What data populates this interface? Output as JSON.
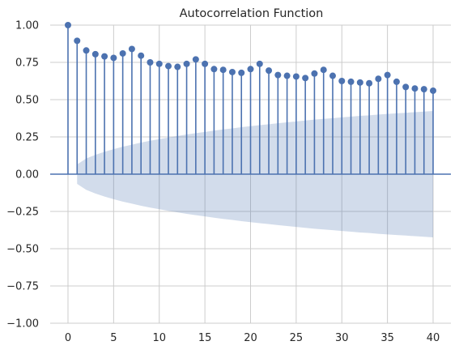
{
  "chart_data": {
    "type": "stem",
    "title": "Autocorrelation Function",
    "xlabel": "",
    "ylabel": "",
    "xlim": [
      -1.95,
      41.95
    ],
    "ylim": [
      -1.0,
      1.0
    ],
    "x_ticks": [
      0,
      5,
      10,
      15,
      20,
      25,
      30,
      35,
      40
    ],
    "y_ticks": [
      -1.0,
      -0.75,
      -0.5,
      -0.25,
      0.0,
      0.25,
      0.5,
      0.75,
      1.0
    ],
    "x_tick_labels": [
      "0",
      "5",
      "10",
      "15",
      "20",
      "25",
      "30",
      "35",
      "40"
    ],
    "y_tick_labels": [
      "−1.00",
      "−0.75",
      "−0.50",
      "−0.25",
      "0.00",
      "0.25",
      "0.50",
      "0.75",
      "1.00"
    ],
    "grid": true,
    "lags": [
      0,
      1,
      2,
      3,
      4,
      5,
      6,
      7,
      8,
      9,
      10,
      11,
      12,
      13,
      14,
      15,
      16,
      17,
      18,
      19,
      20,
      21,
      22,
      23,
      24,
      25,
      26,
      27,
      28,
      29,
      30,
      31,
      32,
      33,
      34,
      35,
      36,
      37,
      38,
      39,
      40
    ],
    "values": [
      1.0,
      0.895,
      0.83,
      0.805,
      0.79,
      0.78,
      0.81,
      0.84,
      0.795,
      0.75,
      0.74,
      0.725,
      0.72,
      0.74,
      0.77,
      0.74,
      0.705,
      0.7,
      0.685,
      0.68,
      0.705,
      0.74,
      0.695,
      0.665,
      0.66,
      0.655,
      0.645,
      0.675,
      0.7,
      0.66,
      0.625,
      0.62,
      0.615,
      0.61,
      0.64,
      0.665,
      0.62,
      0.585,
      0.575,
      0.57,
      0.56
    ],
    "confint_upper": [
      null,
      0.065,
      0.105,
      0.13,
      0.15,
      0.168,
      0.184,
      0.198,
      0.212,
      0.224,
      0.235,
      0.246,
      0.256,
      0.266,
      0.275,
      0.283,
      0.292,
      0.3,
      0.307,
      0.315,
      0.322,
      0.329,
      0.335,
      0.342,
      0.348,
      0.354,
      0.36,
      0.366,
      0.371,
      0.376,
      0.381,
      0.386,
      0.391,
      0.395,
      0.4,
      0.404,
      0.408,
      0.412,
      0.416,
      0.42,
      0.424
    ],
    "colors": {
      "stem": "#4c72b0",
      "marker": "#4c72b0",
      "band": "#4c72b0",
      "band_opacity": 0.25,
      "zero_line": "#4c72b0",
      "grid": "#cccccc",
      "text": "#262626"
    }
  }
}
